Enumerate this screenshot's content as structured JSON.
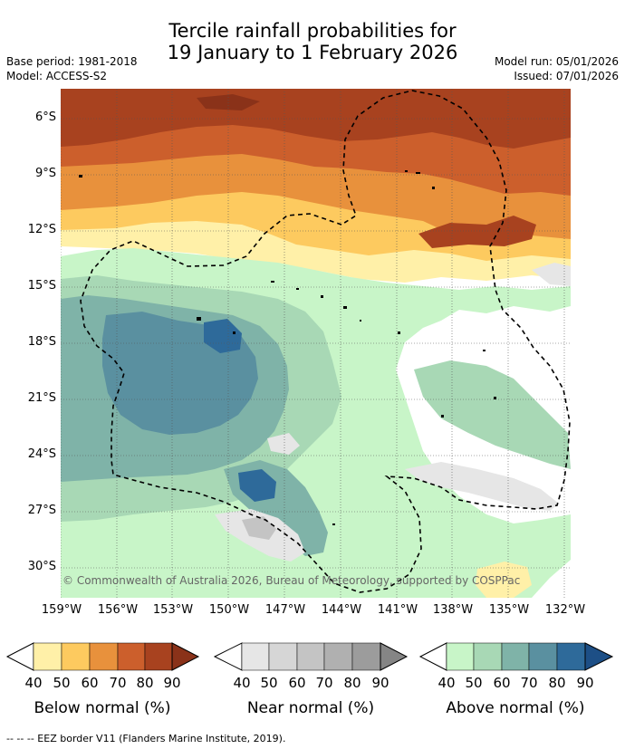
{
  "title_line1": "Tercile rainfall probabilities for",
  "title_line2": "19 January to 1 February 2026",
  "base_period": "Base period: 1981-2018",
  "model": "Model: ACCESS-S2",
  "model_run": "Model run: 05/01/2026",
  "issued": "Issued: 07/01/2026",
  "lat_labels": [
    "6°S",
    "9°S",
    "12°S",
    "15°S",
    "18°S",
    "21°S",
    "24°S",
    "27°S",
    "30°S"
  ],
  "lon_labels": [
    "159°W",
    "156°W",
    "153°W",
    "150°W",
    "147°W",
    "144°W",
    "141°W",
    "138°W",
    "135°W",
    "132°W"
  ],
  "copyright": "© Commonwealth of Australia 2026, Bureau of Meteorology, supported by COSPPac",
  "legend": {
    "below": {
      "label": "Below normal (%)",
      "ticks": [
        "40",
        "50",
        "60",
        "70",
        "80",
        "90"
      ],
      "colors": [
        "#fff0a8",
        "#fdca5f",
        "#e8913c",
        "#cc5f2c",
        "#a8421f",
        "#8a3219"
      ]
    },
    "near": {
      "label": "Near normal (%)",
      "ticks": [
        "40",
        "50",
        "60",
        "70",
        "80",
        "90"
      ],
      "colors": [
        "#e6e6e6",
        "#d6d6d6",
        "#c4c4c4",
        "#b0b0b0",
        "#9c9c9c",
        "#858585"
      ]
    },
    "above": {
      "label": "Above normal (%)",
      "ticks": [
        "40",
        "50",
        "60",
        "70",
        "80",
        "90"
      ],
      "colors": [
        "#c8f5c8",
        "#a8d8b5",
        "#7fb3a8",
        "#5a90a0",
        "#2e6a9a",
        "#1d4f86"
      ]
    }
  },
  "eez_note": "--  --  -- EEZ border V11 (Flanders Marine Institute, 2019)."
}
